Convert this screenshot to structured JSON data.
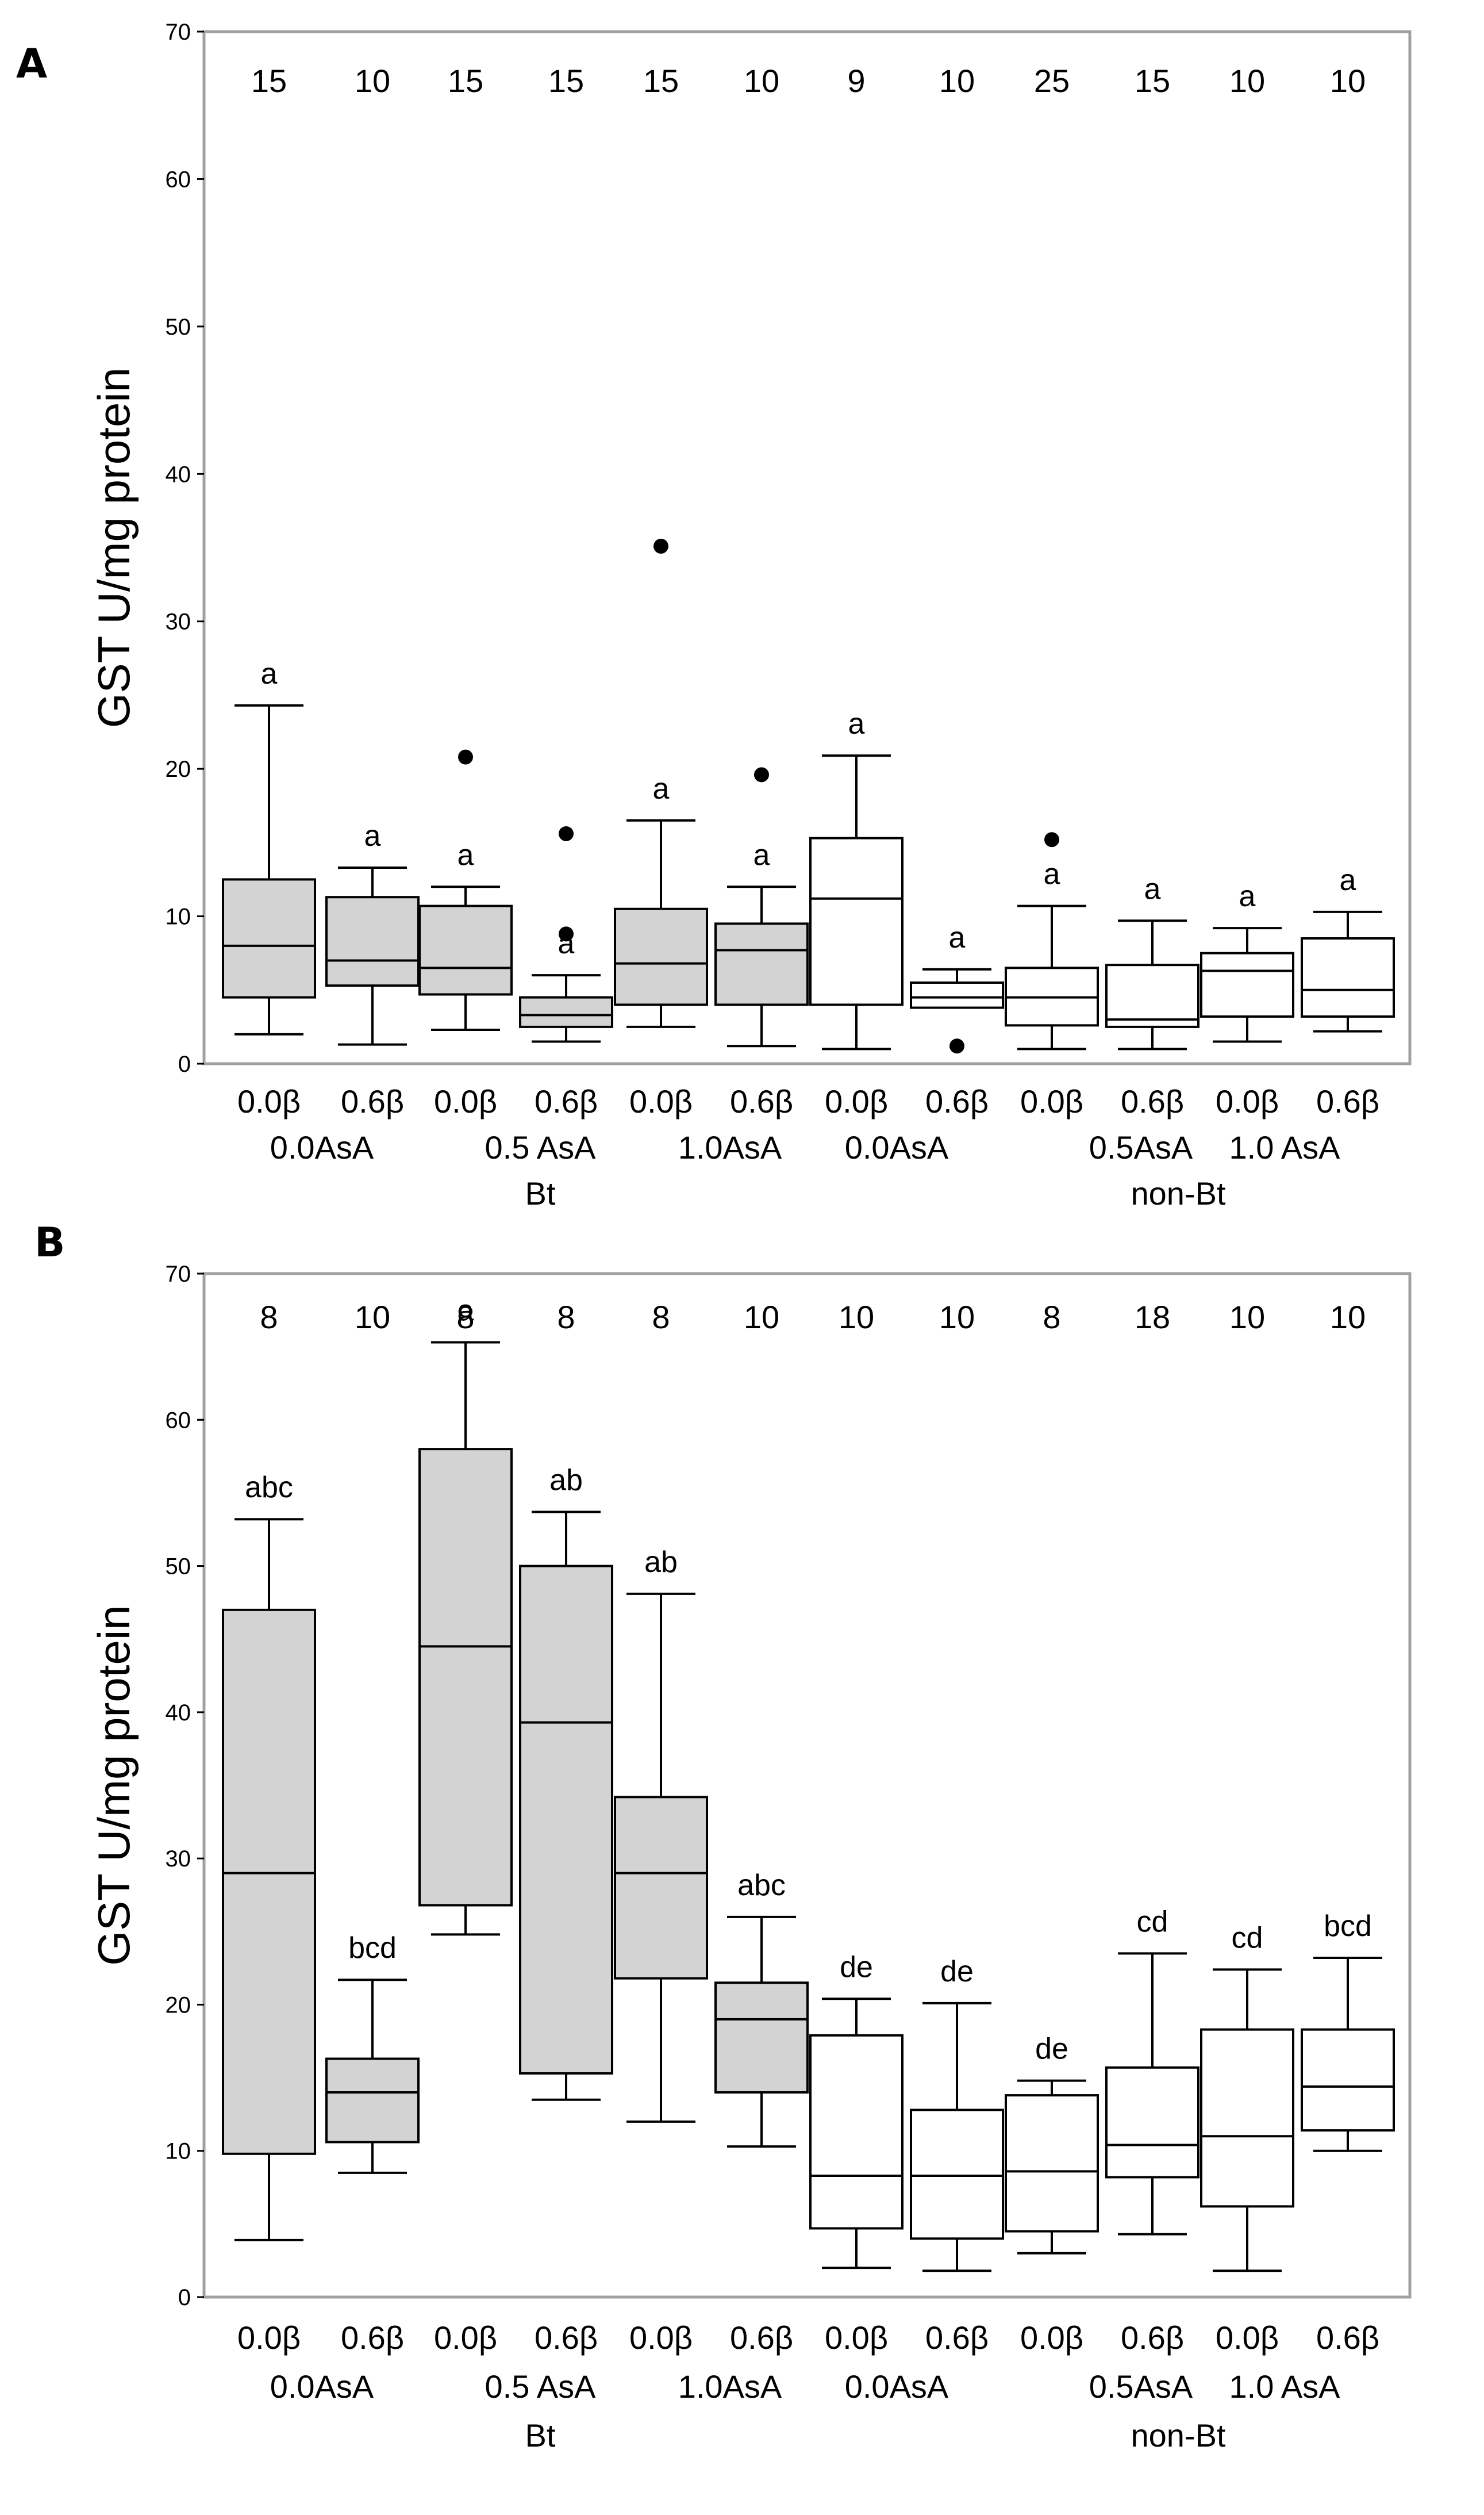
{
  "chart_data": [
    {
      "panel": "A",
      "type": "box",
      "ylabel": "GST U/mg protein",
      "ylim": [
        0,
        70
      ],
      "yticks": [
        0,
        10,
        20,
        30,
        40,
        50,
        60,
        70
      ],
      "groups": [
        {
          "label": "Bt",
          "fill": "#d3d3d3",
          "asa_labels": [
            "0.0AsA",
            "0.5 AsA",
            "1.0AsA"
          ]
        },
        {
          "label": "non-Bt",
          "fill": "#ffffff",
          "asa_labels": [
            "0.0AsA",
            "0.5AsA",
            "1.0  AsA"
          ]
        }
      ],
      "categories": [
        "0.0β",
        "0.6β",
        "0.0β",
        "0.6β",
        "0.0β",
        "0.6β",
        "0.0β",
        "0.6β",
        "0.0β",
        "0.6β",
        "0.0β",
        "0.6β"
      ],
      "n": [
        "15",
        "10",
        "15",
        "15",
        "15",
        "10",
        "9",
        "10",
        "25",
        "15",
        "10",
        "10"
      ],
      "boxes": [
        {
          "min": 2.0,
          "q1": 4.5,
          "median": 8.0,
          "q3": 12.5,
          "max": 24.3,
          "outliers": [],
          "letter": "a"
        },
        {
          "min": 1.3,
          "q1": 5.3,
          "median": 7.0,
          "q3": 11.3,
          "max": 13.3,
          "outliers": [],
          "letter": "a"
        },
        {
          "min": 2.3,
          "q1": 4.7,
          "median": 6.5,
          "q3": 10.7,
          "max": 12.0,
          "outliers": [
            20.8
          ],
          "letter": "a"
        },
        {
          "min": 1.5,
          "q1": 2.5,
          "median": 3.3,
          "q3": 4.5,
          "max": 6.0,
          "outliers": [
            8.8,
            15.6
          ],
          "letter": "a"
        },
        {
          "min": 2.5,
          "q1": 4.0,
          "median": 6.8,
          "q3": 10.5,
          "max": 16.5,
          "outliers": [
            35.1
          ],
          "letter": "a"
        },
        {
          "min": 1.2,
          "q1": 4.0,
          "median": 7.7,
          "q3": 9.5,
          "max": 12.0,
          "outliers": [
            19.6
          ],
          "letter": "a"
        },
        {
          "min": 1.0,
          "q1": 4.0,
          "median": 11.2,
          "q3": 15.3,
          "max": 20.9,
          "outliers": [],
          "letter": "a"
        },
        {
          "min": 3.8,
          "q1": 3.8,
          "median": 4.5,
          "q3": 5.5,
          "max": 6.4,
          "outliers": [
            1.2
          ],
          "letter": "a"
        },
        {
          "min": 1.0,
          "q1": 2.6,
          "median": 4.5,
          "q3": 6.5,
          "max": 10.7,
          "outliers": [
            15.2
          ],
          "letter": "a"
        },
        {
          "min": 1.0,
          "q1": 2.5,
          "median": 3.0,
          "q3": 6.7,
          "max": 9.7,
          "outliers": [],
          "letter": "a"
        },
        {
          "min": 1.5,
          "q1": 3.2,
          "median": 6.3,
          "q3": 7.5,
          "max": 9.2,
          "outliers": [],
          "letter": "a"
        },
        {
          "min": 2.2,
          "q1": 3.2,
          "median": 5.0,
          "q3": 8.5,
          "max": 10.3,
          "outliers": [],
          "letter": "a"
        }
      ]
    },
    {
      "panel": "B",
      "type": "box",
      "ylabel": "GST U/mg protein",
      "ylim": [
        0,
        70
      ],
      "yticks": [
        0,
        10,
        20,
        30,
        40,
        50,
        60,
        70
      ],
      "groups": [
        {
          "label": "Bt",
          "fill": "#d3d3d3",
          "asa_labels": [
            "0.0AsA",
            "0.5 AsA",
            "1.0AsA"
          ]
        },
        {
          "label": "non-Bt",
          "fill": "#ffffff",
          "asa_labels": [
            "0.0AsA",
            "0.5AsA",
            "1.0  AsA"
          ]
        }
      ],
      "categories": [
        "0.0β",
        "0.6β",
        "0.0β",
        "0.6β",
        "0.0β",
        "0.6β",
        "0.0β",
        "0.6β",
        "0.0β",
        "0.6β",
        "0.0β",
        "0.6β"
      ],
      "n": [
        "8",
        "10",
        "8",
        "8",
        "8",
        "10",
        "10",
        "10",
        "8",
        "18",
        "10",
        "10"
      ],
      "boxes": [
        {
          "min": 3.9,
          "q1": 9.8,
          "median": 29.0,
          "q3": 47.0,
          "max": 53.2,
          "outliers": [],
          "letter": "abc"
        },
        {
          "min": 8.5,
          "q1": 10.6,
          "median": 14.0,
          "q3": 16.3,
          "max": 21.7,
          "outliers": [],
          "letter": "bcd"
        },
        {
          "min": 24.8,
          "q1": 26.8,
          "median": 44.5,
          "q3": 58.0,
          "max": 65.3,
          "outliers": [],
          "letter": "a"
        },
        {
          "min": 13.5,
          "q1": 15.3,
          "median": 39.3,
          "q3": 50.0,
          "max": 53.7,
          "outliers": [],
          "letter": "ab"
        },
        {
          "min": 12.0,
          "q1": 21.8,
          "median": 29.0,
          "q3": 34.2,
          "max": 48.1,
          "outliers": [],
          "letter": "ab"
        },
        {
          "min": 10.3,
          "q1": 14.0,
          "median": 19.0,
          "q3": 21.5,
          "max": 26.0,
          "outliers": [],
          "letter": "abc"
        },
        {
          "min": 2.0,
          "q1": 4.7,
          "median": 8.3,
          "q3": 17.9,
          "max": 20.4,
          "outliers": [],
          "letter": "de"
        },
        {
          "min": 1.8,
          "q1": 4.0,
          "median": 8.3,
          "q3": 12.8,
          "max": 20.1,
          "outliers": [],
          "letter": "de"
        },
        {
          "min": 3.0,
          "q1": 4.5,
          "median": 8.6,
          "q3": 13.8,
          "max": 14.8,
          "outliers": [],
          "letter": "de"
        },
        {
          "min": 4.3,
          "q1": 8.2,
          "median": 10.4,
          "q3": 15.7,
          "max": 23.5,
          "outliers": [],
          "letter": "cd"
        },
        {
          "min": 1.8,
          "q1": 6.2,
          "median": 11.0,
          "q3": 18.3,
          "max": 22.4,
          "outliers": [],
          "letter": "cd"
        },
        {
          "min": 10.0,
          "q1": 11.4,
          "median": 14.4,
          "q3": 18.3,
          "max": 23.2,
          "outliers": [],
          "letter": "bcd"
        }
      ]
    }
  ]
}
